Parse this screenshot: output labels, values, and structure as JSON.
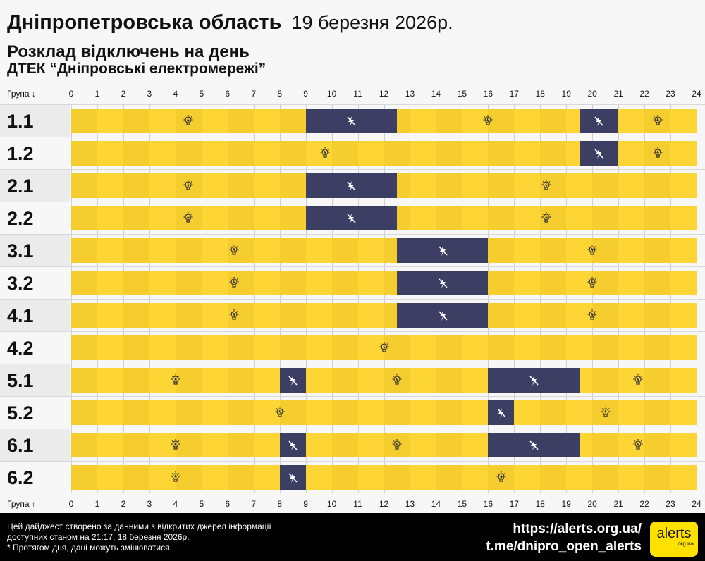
{
  "header": {
    "region": "Дніпропетровська область",
    "date": "19 березня 2026р.",
    "subtitle": "Розклад відключень на день",
    "provider": "ДТЕК “Дніпровські електромережі”"
  },
  "axis": {
    "top_label": "Група ↓",
    "bottom_label": "Група ↑",
    "hours": [
      "0",
      "1",
      "2",
      "3",
      "4",
      "5",
      "6",
      "7",
      "8",
      "9",
      "10",
      "11",
      "12",
      "13",
      "14",
      "15",
      "16",
      "17",
      "18",
      "19",
      "20",
      "21",
      "22",
      "23",
      "24"
    ]
  },
  "colors": {
    "power_on": "#fdd535",
    "power_off": "#3c3e64"
  },
  "icons": {
    "on": "lightbulb-icon",
    "off": "no-power-icon"
  },
  "groups": [
    {
      "name": "1.1",
      "outages": [
        [
          9,
          12.5
        ],
        [
          19.5,
          21
        ]
      ]
    },
    {
      "name": "1.2",
      "outages": [
        [
          19.5,
          21
        ]
      ]
    },
    {
      "name": "2.1",
      "outages": [
        [
          9,
          12.5
        ]
      ]
    },
    {
      "name": "2.2",
      "outages": [
        [
          9,
          12.5
        ]
      ]
    },
    {
      "name": "3.1",
      "outages": [
        [
          12.5,
          16
        ]
      ]
    },
    {
      "name": "3.2",
      "outages": [
        [
          12.5,
          16
        ]
      ]
    },
    {
      "name": "4.1",
      "outages": [
        [
          12.5,
          16
        ]
      ]
    },
    {
      "name": "4.2",
      "outages": []
    },
    {
      "name": "5.1",
      "outages": [
        [
          8,
          9
        ],
        [
          16,
          19.5
        ]
      ]
    },
    {
      "name": "5.2",
      "outages": [
        [
          16,
          17
        ]
      ]
    },
    {
      "name": "6.1",
      "outages": [
        [
          8,
          9
        ],
        [
          16,
          19.5
        ]
      ]
    },
    {
      "name": "6.2",
      "outages": [
        [
          8,
          9
        ]
      ]
    }
  ],
  "footer": {
    "line1": "Цей дайджест створено за данними з відкритих джерел інформації",
    "line2": "доступних станом на 21:17, 18 березня 2026р.",
    "line3": "* Протягом дня, дані можуть змінюватися.",
    "url": "https://alerts.org.ua/",
    "telegram": "t.me/dnipro_open_alerts",
    "logo": "alerts",
    "logo_sub": "org.ua"
  }
}
